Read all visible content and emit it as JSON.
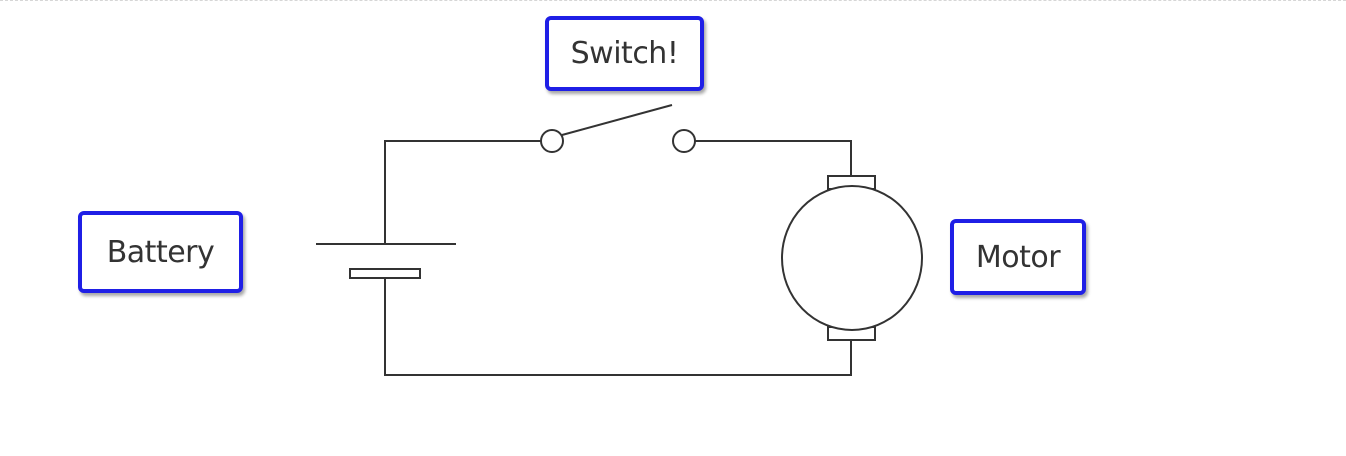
{
  "labels": {
    "switch": "Switch!",
    "battery": "Battery",
    "motor": "Motor"
  },
  "colors": {
    "label_border": "#1f1fe6",
    "wire": "#333333",
    "label_text": "#333333"
  }
}
